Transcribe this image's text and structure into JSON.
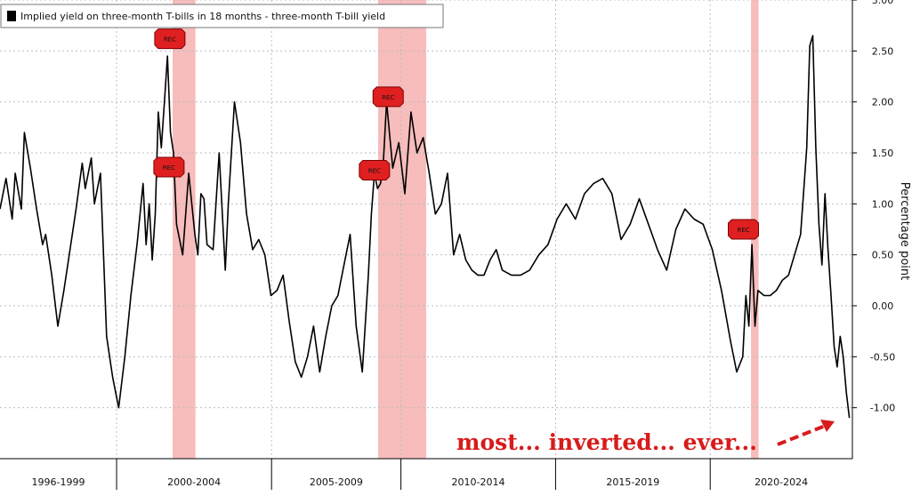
{
  "chart_data": {
    "type": "line",
    "legend": "Implied yield on three-month T-bills in 18 months - three-month T-bill yield",
    "legend_placement": "top-left",
    "ylabel": "Percentage point",
    "yaxis_side": "right",
    "ylim": [
      -1.5,
      3.0
    ],
    "yticks": [
      3.0,
      2.5,
      2.0,
      1.5,
      1.0,
      0.5,
      0.0,
      -0.5,
      -1.0
    ],
    "ytick_labels": [
      "3.00",
      "2.50",
      "2.00",
      "1.50",
      "1.00",
      "0.50",
      "0.00",
      "-0.50",
      "-1.00"
    ],
    "xlim": [
      1995.5,
      2023.5
    ],
    "categories": [
      {
        "label": "1996-1999",
        "start": 1995.5,
        "end": 1999.33
      },
      {
        "label": "2000-2004",
        "start": 1999.33,
        "end": 2004.42
      },
      {
        "label": "2005-2009",
        "start": 2004.42,
        "end": 2008.67
      },
      {
        "label": "2010-2014",
        "start": 2008.67,
        "end": 2013.75
      },
      {
        "label": "2015-2019",
        "start": 2013.75,
        "end": 2018.83
      },
      {
        "label": "2020-2024",
        "start": 2018.83,
        "end": 2023.5
      }
    ],
    "recessions": [
      {
        "start": 2001.17,
        "end": 2001.92
      },
      {
        "start": 2007.92,
        "end": 2009.5
      },
      {
        "start": 2020.17,
        "end": 2020.42
      }
    ],
    "rec_markers": [
      {
        "label": "REC",
        "x": 2001.08,
        "y": 2.62
      },
      {
        "label": "REC",
        "x": 2001.05,
        "y": 1.36
      },
      {
        "label": "REC",
        "x": 2008.25,
        "y": 2.05
      },
      {
        "label": "REC",
        "x": 2007.8,
        "y": 1.33
      },
      {
        "label": "REC",
        "x": 2019.92,
        "y": 0.75
      }
    ],
    "series": [
      {
        "x": [
          1995.5,
          1995.7,
          1995.9,
          1996.0,
          1996.2,
          1996.3,
          1996.5,
          1996.7,
          1996.9,
          1997.0,
          1997.2,
          1997.4,
          1997.6,
          1997.8,
          1998.0,
          1998.2,
          1998.3,
          1998.5,
          1998.6,
          1998.8,
          1999.0,
          1999.2,
          1999.4,
          1999.6,
          1999.8,
          2000.0,
          2000.2,
          2000.3,
          2000.4,
          2000.5,
          2000.6,
          2000.7,
          2000.8,
          2000.9,
          2001.0,
          2001.1,
          2001.2,
          2001.3,
          2001.5,
          2001.7,
          2001.9,
          2002.0,
          2002.1,
          2002.2,
          2002.3,
          2002.5,
          2002.7,
          2002.9,
          2003.0,
          2003.2,
          2003.4,
          2003.6,
          2003.8,
          2004.0,
          2004.2,
          2004.4,
          2004.6,
          2004.8,
          2005.0,
          2005.2,
          2005.4,
          2005.6,
          2005.8,
          2006.0,
          2006.2,
          2006.4,
          2006.6,
          2006.8,
          2007.0,
          2007.2,
          2007.4,
          2007.6,
          2007.7,
          2007.8,
          2007.9,
          2008.0,
          2008.1,
          2008.2,
          2008.4,
          2008.6,
          2008.8,
          2009.0,
          2009.2,
          2009.4,
          2009.6,
          2009.8,
          2010.0,
          2010.2,
          2010.4,
          2010.6,
          2010.8,
          2011.0,
          2011.2,
          2011.4,
          2011.6,
          2011.8,
          2012.0,
          2012.3,
          2012.6,
          2012.9,
          2013.2,
          2013.5,
          2013.8,
          2014.1,
          2014.4,
          2014.7,
          2015.0,
          2015.3,
          2015.6,
          2015.9,
          2016.2,
          2016.5,
          2016.8,
          2017.1,
          2017.4,
          2017.7,
          2018.0,
          2018.3,
          2018.6,
          2018.9,
          2019.2,
          2019.5,
          2019.7,
          2019.9,
          2020.0,
          2020.1,
          2020.2,
          2020.3,
          2020.4,
          2020.6,
          2020.8,
          2021.0,
          2021.2,
          2021.4,
          2021.6,
          2021.8,
          2022.0,
          2022.1,
          2022.2,
          2022.3,
          2022.4,
          2022.5,
          2022.6,
          2022.7,
          2022.8,
          2022.9,
          2023.0,
          2023.1,
          2023.2,
          2023.3,
          2023.4
        ],
        "y": [
          0.95,
          1.25,
          0.85,
          1.3,
          0.95,
          1.7,
          1.35,
          0.95,
          0.6,
          0.7,
          0.3,
          -0.2,
          0.15,
          0.55,
          0.95,
          1.4,
          1.15,
          1.45,
          1.0,
          1.3,
          -0.3,
          -0.7,
          -1.0,
          -0.5,
          0.1,
          0.6,
          1.2,
          0.6,
          1.0,
          0.45,
          0.9,
          1.9,
          1.55,
          2.0,
          2.45,
          1.7,
          1.5,
          0.8,
          0.5,
          1.3,
          0.7,
          0.5,
          1.1,
          1.05,
          0.6,
          0.55,
          1.5,
          0.35,
          1.0,
          2.0,
          1.6,
          0.9,
          0.55,
          0.65,
          0.5,
          0.1,
          0.15,
          0.3,
          -0.15,
          -0.55,
          -0.7,
          -0.5,
          -0.2,
          -0.65,
          -0.3,
          0.0,
          0.1,
          0.4,
          0.7,
          -0.2,
          -0.65,
          0.3,
          0.9,
          1.3,
          1.15,
          1.2,
          1.45,
          2.0,
          1.35,
          1.6,
          1.1,
          1.9,
          1.5,
          1.65,
          1.3,
          0.9,
          1.0,
          1.3,
          0.5,
          0.7,
          0.45,
          0.35,
          0.3,
          0.3,
          0.45,
          0.55,
          0.35,
          0.3,
          0.3,
          0.35,
          0.5,
          0.6,
          0.85,
          1.0,
          0.85,
          1.1,
          1.2,
          1.25,
          1.1,
          0.65,
          0.8,
          1.05,
          0.8,
          0.55,
          0.35,
          0.75,
          0.95,
          0.85,
          0.8,
          0.55,
          0.15,
          -0.35,
          -0.65,
          -0.5,
          0.1,
          -0.2,
          0.6,
          -0.2,
          0.15,
          0.1,
          0.1,
          0.15,
          0.25,
          0.3,
          0.5,
          0.7,
          1.55,
          2.55,
          2.65,
          1.55,
          0.8,
          0.4,
          1.1,
          0.55,
          0.1,
          -0.4,
          -0.6,
          -0.3,
          -0.5,
          -0.85,
          -1.1
        ]
      }
    ],
    "annotation": "most... inverted... ever..."
  }
}
